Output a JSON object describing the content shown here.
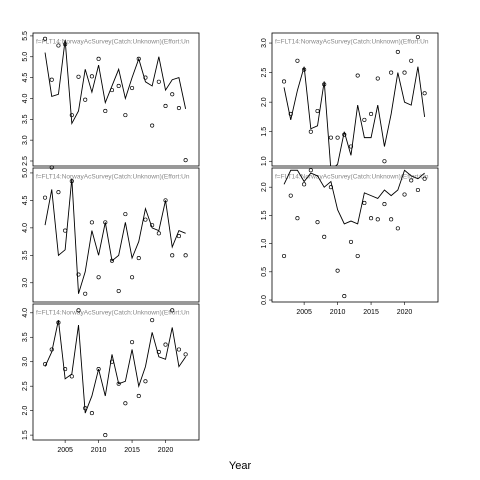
{
  "xlabel": "Year",
  "chart_data": [
    {
      "type": "line",
      "title": "f=FLT14:NorwayAcSurvey(Catch:Unknown)(Effort:Un",
      "x": [
        2002,
        2003,
        2004,
        2005,
        2006,
        2007,
        2008,
        2009,
        2010,
        2011,
        2012,
        2013,
        2014,
        2015,
        2016,
        2017,
        2018,
        2019,
        2020,
        2021,
        2022,
        2023
      ],
      "xlim": [
        2000.2,
        2025.0
      ],
      "ylim": [
        2.38,
        5.57
      ],
      "yticks": [
        {
          "value": 2.5,
          "label": "2.5"
        },
        {
          "value": 3,
          "label": "3.0"
        },
        {
          "value": 3.5,
          "label": "3.5"
        },
        {
          "value": 4,
          "label": "4.0"
        },
        {
          "value": 4.5,
          "label": "4.5"
        },
        {
          "value": 5,
          "label": "5.0"
        },
        {
          "value": 5.5,
          "label": "5.5"
        }
      ],
      "series": [
        {
          "style": "line",
          "color": "#000000",
          "values": [
            5.1,
            4.05,
            4.1,
            5.4,
            3.4,
            3.7,
            4.7,
            4.15,
            4.8,
            3.9,
            4.3,
            4.7,
            4.0,
            4.5,
            4.95,
            4.4,
            4.3,
            5.0,
            4.2,
            4.45,
            4.5,
            3.75
          ]
        },
        {
          "style": "points",
          "color": "#000000",
          "values": [
            5.43,
            4.45,
            5.27,
            5.3,
            3.6,
            4.52,
            3.97,
            4.53,
            4.95,
            3.7,
            4.2,
            4.3,
            3.6,
            4.25,
            4.95,
            4.5,
            3.35,
            4.4,
            3.82,
            4.1,
            3.77,
            2.52
          ]
        }
      ]
    },
    {
      "type": "line",
      "title": "f=FLT14:NorwayAcSurvey(Catch:Unknown)(Effort:Un",
      "x": [
        2002,
        2003,
        2004,
        2005,
        2006,
        2007,
        2008,
        2009,
        2010,
        2011,
        2012,
        2013,
        2014,
        2015,
        2016,
        2017,
        2018,
        2019,
        2020,
        2021,
        2022,
        2023
      ],
      "xlim": [
        2000.2,
        2025.0
      ],
      "ylim": [
        2.65,
        5.09
      ],
      "yticks": [
        {
          "value": 3,
          "label": "3.0"
        },
        3.5,
        {
          "value": 4,
          "label": "4.0"
        },
        4.5,
        {
          "value": 5,
          "label": "5.0"
        }
      ],
      "series": [
        {
          "style": "line",
          "color": "#000000",
          "values": [
            4.05,
            4.7,
            3.5,
            3.6,
            4.9,
            2.8,
            3.2,
            3.95,
            3.5,
            4.1,
            3.4,
            3.5,
            4.1,
            3.45,
            3.75,
            4.35,
            4.0,
            3.95,
            4.5,
            3.65,
            3.95,
            3.9
          ]
        },
        {
          "style": "points",
          "color": "#000000",
          "values": [
            4.55,
            5.1,
            4.65,
            3.95,
            4.85,
            3.15,
            2.8,
            4.1,
            3.1,
            4.1,
            3.4,
            2.85,
            4.25,
            3.1,
            3.45,
            4.15,
            4.05,
            3.9,
            4.5,
            3.5,
            3.85,
            3.5
          ]
        }
      ]
    },
    {
      "type": "line",
      "title": "f=FLT14:NorwayAcSurvey(Catch:Unknown)(Effort:Un",
      "x": [
        2002,
        2003,
        2004,
        2005,
        2006,
        2007,
        2008,
        2009,
        2010,
        2011,
        2012,
        2013,
        2014,
        2015,
        2016,
        2017,
        2018,
        2019,
        2020,
        2021,
        2022,
        2023
      ],
      "xlim": [
        2000.2,
        2025.0
      ],
      "ylim": [
        1.4,
        4.18
      ],
      "xticks": [
        2005,
        2010,
        2015,
        2020
      ],
      "yticks": [
        1.5,
        {
          "value": 2,
          "label": "2.0"
        },
        2.5,
        {
          "value": 3,
          "label": "3.0"
        },
        3.5,
        {
          "value": 4,
          "label": "4.0"
        }
      ],
      "series": [
        {
          "style": "line",
          "color": "#000000",
          "values": [
            2.9,
            3.2,
            3.85,
            2.65,
            2.75,
            3.75,
            1.95,
            2.3,
            2.85,
            2.3,
            3.15,
            2.55,
            2.6,
            3.25,
            2.5,
            2.9,
            3.6,
            3.1,
            3.05,
            3.7,
            2.9,
            3.1
          ]
        },
        {
          "style": "points",
          "color": "#000000",
          "values": [
            2.95,
            3.25,
            3.8,
            2.85,
            2.7,
            4.05,
            2.05,
            1.95,
            2.85,
            1.5,
            3.0,
            2.55,
            2.15,
            3.4,
            2.3,
            2.6,
            3.85,
            3.2,
            3.35,
            4.05,
            3.25,
            3.15
          ]
        }
      ]
    },
    {
      "type": "line",
      "title": "f=FLT14:NorwayAcSurvey(Catch:Unknown)(Effort:Un",
      "x": [
        2002,
        2003,
        2004,
        2005,
        2006,
        2007,
        2008,
        2009,
        2010,
        2011,
        2012,
        2013,
        2014,
        2015,
        2016,
        2017,
        2018,
        2019,
        2020,
        2021,
        2022,
        2023
      ],
      "xlim": [
        2000.2,
        2025.0
      ],
      "ylim": [
        0.92,
        3.17
      ],
      "yticks": [
        {
          "value": 1,
          "label": "1.0"
        },
        1.5,
        {
          "value": 2,
          "label": "2.0"
        },
        2.5,
        {
          "value": 3,
          "label": "3.0"
        }
      ],
      "series": [
        {
          "style": "line",
          "color": "#000000",
          "values": [
            2.25,
            1.7,
            2.2,
            2.6,
            1.55,
            1.6,
            2.35,
            0.85,
            0.95,
            1.5,
            1.1,
            1.95,
            1.4,
            1.4,
            1.95,
            1.25,
            1.8,
            2.5,
            2.0,
            1.95,
            2.6,
            1.75
          ]
        },
        {
          "style": "points",
          "color": "#000000",
          "values": [
            2.35,
            1.8,
            2.7,
            2.55,
            1.5,
            1.85,
            2.3,
            1.4,
            1.4,
            1.45,
            1.25,
            2.45,
            1.7,
            1.8,
            2.4,
            1.0,
            2.5,
            2.85,
            2.5,
            2.7,
            3.1,
            2.15
          ]
        }
      ]
    },
    {
      "type": "line",
      "title": "f=FLT14:NorwayAcSurvey(Catch:Unknown)(Effort:Un",
      "x": [
        2002,
        2003,
        2004,
        2005,
        2006,
        2007,
        2008,
        2009,
        2010,
        2011,
        2012,
        2013,
        2014,
        2015,
        2016,
        2017,
        2018,
        2019,
        2020,
        2021,
        2022,
        2023
      ],
      "xlim": [
        2000.2,
        2025.0
      ],
      "ylim": [
        -0.035,
        2.34
      ],
      "xticks": [
        2005,
        2010,
        2015,
        2020
      ],
      "yticks": [
        {
          "value": 0,
          "label": "0.0"
        },
        0.5,
        {
          "value": 1,
          "label": "1.0"
        },
        1.5,
        {
          "value": 2,
          "label": "2.0"
        }
      ],
      "series": [
        {
          "style": "line",
          "color": "#000000",
          "values": [
            2.05,
            2.3,
            2.3,
            2.1,
            2.25,
            2.2,
            2.0,
            2.1,
            1.6,
            1.35,
            1.4,
            1.35,
            1.9,
            1.85,
            1.8,
            1.95,
            1.85,
            1.95,
            2.3,
            2.2,
            2.15,
            2.25
          ]
        },
        {
          "style": "points",
          "color": "#000000",
          "values": [
            0.78,
            1.85,
            1.45,
            2.05,
            2.3,
            1.38,
            1.12,
            2.0,
            0.52,
            0.07,
            1.03,
            0.78,
            1.72,
            1.45,
            1.43,
            1.7,
            1.43,
            1.27,
            1.87,
            2.12,
            1.95,
            2.15
          ]
        }
      ]
    }
  ]
}
